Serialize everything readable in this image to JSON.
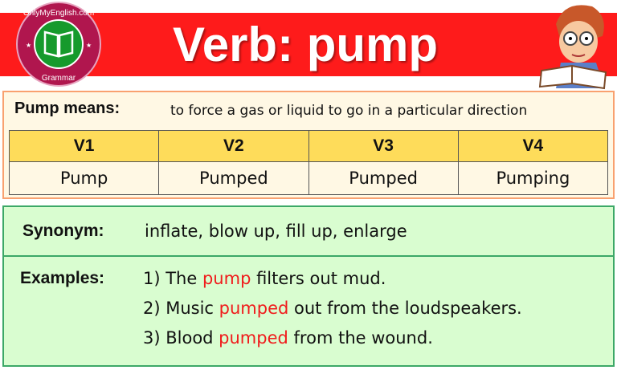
{
  "header": {
    "title": "Verb: pump",
    "logo_text_top": "Only My English.com",
    "logo_text_bottom": "Grammar",
    "colors": {
      "banner": "#fe1b1b",
      "logo_ring": "#b0164e",
      "logo_center": "#169a2c"
    }
  },
  "meaning": {
    "label": "Pump means:",
    "text": "to force a gas or liquid to go in a particular direction"
  },
  "forms": {
    "headers": [
      "V1",
      "V2",
      "V3",
      "V4"
    ],
    "values": [
      "Pump",
      "Pumped",
      "Pumped",
      "Pumping"
    ]
  },
  "synonym": {
    "label": "Synonym:",
    "text": "inflate, blow up, fill up, enlarge"
  },
  "examples": {
    "label": "Examples:",
    "items": [
      {
        "pre": "1) The ",
        "hl": "pump",
        "post": " filters out mud."
      },
      {
        "pre": "2) Music ",
        "hl": "pumped",
        "post": " out from the loudspeakers."
      },
      {
        "pre": "3) Blood ",
        "hl": "pumped",
        "post": " from the wound."
      }
    ]
  }
}
